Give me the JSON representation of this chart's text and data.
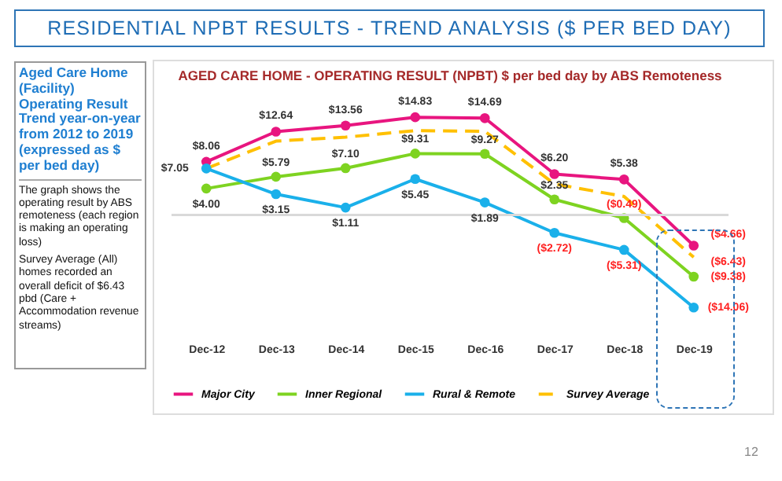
{
  "chart_data": {
    "type": "line",
    "title": "RESIDENTIAL NPBT RESULTS - TREND ANALYSIS ($ PER BED DAY)",
    "subtitle": "AGED CARE HOME - OPERATING RESULT (NPBT) $ per bed day by ABS Remoteness",
    "annotations": [
      "Aged Care Home (Facility) Operating Result Trend year-on-year from 2012 to 2019 (expressed as $ per bed day)",
      "The graph shows the operating result by ABS remoteness (each region is making an operating loss)",
      "Survey Average (All) homes recorded an overall deficit of $6.43 pbd (Care + Accommodation revenue streams)",
      "12"
    ],
    "categories": [
      "Dec-12",
      "Dec-13",
      "Dec-14",
      "Dec-15",
      "Dec-16",
      "Dec-17",
      "Dec-18",
      "Dec-19"
    ],
    "series": [
      {
        "name": "Major City",
        "color": "#e8157f",
        "values": [
          8.06,
          12.64,
          13.56,
          14.83,
          14.69,
          6.2,
          5.38,
          -4.66
        ],
        "value_labels": [
          "$8.06",
          "$12.64",
          "$13.56",
          "$14.83",
          "$14.69",
          "$6.20",
          "$5.38",
          "($4.66)"
        ]
      },
      {
        "name": "Inner Regional",
        "color": "#7ed321",
        "values": [
          4.0,
          5.79,
          7.1,
          9.31,
          9.27,
          2.35,
          -0.49,
          -9.38
        ],
        "value_labels": [
          "$4.00",
          "$5.79",
          "$7.10",
          "$9.31",
          "$9.27",
          "$2.35",
          "($0.49)",
          "($9.38)"
        ]
      },
      {
        "name": "Rural & Remote",
        "color": "#1ab0ea",
        "values": [
          7.05,
          3.15,
          1.11,
          5.45,
          1.89,
          -2.72,
          -5.31,
          -14.06
        ],
        "value_labels": [
          "$7.05",
          "$3.15",
          "$1.11",
          "$5.45",
          "$1.89",
          "($2.72)",
          "($5.31)",
          "($14.06)"
        ]
      },
      {
        "name": "Survey Average",
        "color": "#ffc000",
        "values": [
          7.05,
          11.2,
          11.8,
          12.8,
          12.7,
          4.7,
          2.8,
          -6.43
        ],
        "value_labels": [
          null,
          null,
          null,
          null,
          null,
          null,
          null,
          "($6.43)"
        ],
        "line_style": "dashed",
        "marker": "none"
      }
    ],
    "ref_lines": [
      {
        "axis": "y",
        "value": 0,
        "color": "#d9d9d9"
      }
    ],
    "marker": "circle",
    "line_style": "solid",
    "legend": "bottom",
    "grid": false
  }
}
